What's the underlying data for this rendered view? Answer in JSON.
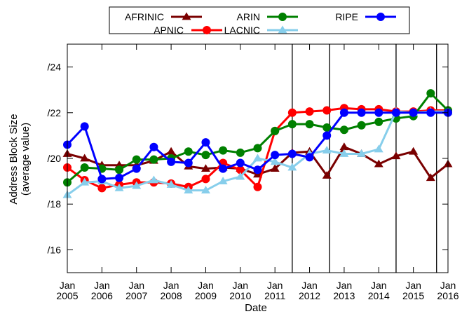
{
  "chart_data": {
    "type": "line",
    "xlabel": "Date",
    "ylabel": "Address Block Size",
    "ylabel2": "(average value)",
    "x_ticks": [
      {
        "year": 2005,
        "month": "Jan",
        "label_year": "2005"
      },
      {
        "year": 2006,
        "month": "Jan",
        "label_year": "2006"
      },
      {
        "year": 2007,
        "month": "Jan",
        "label_year": "2007"
      },
      {
        "year": 2008,
        "month": "Jan",
        "label_year": "2008"
      },
      {
        "year": 2009,
        "month": "Jan",
        "label_year": "2009"
      },
      {
        "year": 2010,
        "month": "Jan",
        "label_year": "2010"
      },
      {
        "year": 2011,
        "month": "Jan",
        "label_year": "2011"
      },
      {
        "year": 2012,
        "month": "Jan",
        "label_year": "2012"
      },
      {
        "year": 2013,
        "month": "Jan",
        "label_year": "2013"
      },
      {
        "year": 2014,
        "month": "Jan",
        "label_year": "2014"
      },
      {
        "year": 2015,
        "month": "Jan",
        "label_year": "2015"
      },
      {
        "year": 2016,
        "month": "Jan",
        "label_year": "2016"
      }
    ],
    "y_ticks": [
      {
        "value": 16,
        "label": "/16"
      },
      {
        "value": 18,
        "label": "/18"
      },
      {
        "value": 20,
        "label": "/20"
      },
      {
        "value": 22,
        "label": "/22"
      },
      {
        "value": 24,
        "label": "/24"
      }
    ],
    "xlim": [
      2005.0,
      2016.0
    ],
    "ylim": [
      15.0,
      25.0
    ],
    "grid": false,
    "legend_placement": "top-center, outside plot",
    "vertical_lines_x": [
      2011.5,
      2012.58,
      2014.5,
      2015.67
    ],
    "series": [
      {
        "name": "AFRINIC",
        "color": "#7a0000",
        "marker": "triangle",
        "x": [
          2005.0,
          2005.5,
          2006.0,
          2006.5,
          2007.0,
          2007.5,
          2008.0,
          2008.5,
          2009.0,
          2009.5,
          2010.0,
          2010.5,
          2011.0,
          2011.5,
          2012.0,
          2012.5,
          2013.0,
          2013.5,
          2014.0,
          2014.5,
          2015.0,
          2015.5,
          2016.0
        ],
        "y": [
          20.2,
          20.0,
          19.7,
          19.7,
          19.7,
          19.9,
          20.3,
          19.65,
          19.55,
          19.6,
          19.55,
          19.3,
          19.55,
          20.25,
          20.3,
          19.25,
          20.5,
          20.2,
          19.75,
          20.1,
          20.3,
          19.15,
          19.75
        ]
      },
      {
        "name": "APNIC",
        "color": "#ff0000",
        "marker": "circle",
        "x": [
          2005.0,
          2005.5,
          2006.0,
          2006.5,
          2007.0,
          2007.5,
          2008.0,
          2008.5,
          2009.0,
          2009.5,
          2010.0,
          2010.5,
          2011.0,
          2011.5,
          2012.0,
          2012.5,
          2013.0,
          2013.5,
          2014.0,
          2014.5,
          2015.0,
          2015.5,
          2016.0
        ],
        "y": [
          19.6,
          19.05,
          18.7,
          18.85,
          18.95,
          18.95,
          18.9,
          18.75,
          19.1,
          19.8,
          19.5,
          18.75,
          21.2,
          22.0,
          22.05,
          22.1,
          22.2,
          22.15,
          22.15,
          22.05,
          22.05,
          22.1,
          22.1
        ]
      },
      {
        "name": "ARIN",
        "color": "#008000",
        "marker": "circle",
        "x": [
          2005.0,
          2005.5,
          2006.0,
          2006.5,
          2007.0,
          2007.5,
          2008.0,
          2008.5,
          2009.0,
          2009.5,
          2010.0,
          2010.5,
          2011.0,
          2011.5,
          2012.0,
          2012.5,
          2013.0,
          2013.5,
          2014.0,
          2014.5,
          2015.0,
          2015.5,
          2016.0
        ],
        "y": [
          18.95,
          19.6,
          19.55,
          19.5,
          19.95,
          19.95,
          20.0,
          20.3,
          20.15,
          20.35,
          20.25,
          20.45,
          21.2,
          21.5,
          21.5,
          21.35,
          21.25,
          21.45,
          21.6,
          21.75,
          21.85,
          22.85,
          22.1
        ]
      },
      {
        "name": "LACNIC",
        "color": "#87ceeb",
        "marker": "triangle",
        "x": [
          2005.0,
          2005.5,
          2006.0,
          2006.5,
          2007.0,
          2007.5,
          2008.0,
          2008.5,
          2009.0,
          2009.5,
          2010.0,
          2010.5,
          2011.0,
          2011.5,
          2012.0,
          2012.5,
          2013.0,
          2013.5,
          2014.0,
          2014.5,
          2015.0,
          2015.5,
          2016.0
        ],
        "y": [
          18.4,
          18.95,
          19.0,
          18.7,
          18.8,
          19.05,
          18.85,
          18.6,
          18.6,
          19.0,
          19.2,
          20.0,
          19.85,
          19.6,
          20.2,
          20.35,
          20.2,
          20.2,
          20.4,
          22.05,
          22.0,
          22.05,
          22.05
        ]
      },
      {
        "name": "RIPE",
        "color": "#0000ff",
        "marker": "circle",
        "x": [
          2005.0,
          2005.5,
          2006.0,
          2006.5,
          2007.0,
          2007.5,
          2008.0,
          2008.5,
          2009.0,
          2009.5,
          2010.0,
          2010.5,
          2011.0,
          2011.5,
          2012.0,
          2012.5,
          2013.0,
          2013.5,
          2014.0,
          2014.5,
          2015.0,
          2015.5,
          2016.0
        ],
        "y": [
          20.6,
          21.4,
          19.1,
          19.15,
          19.55,
          20.5,
          19.85,
          19.8,
          20.7,
          19.55,
          19.8,
          19.5,
          20.15,
          20.2,
          20.05,
          21.0,
          22.0,
          22.0,
          22.0,
          22.0,
          22.0,
          22.0,
          22.0
        ]
      }
    ]
  }
}
